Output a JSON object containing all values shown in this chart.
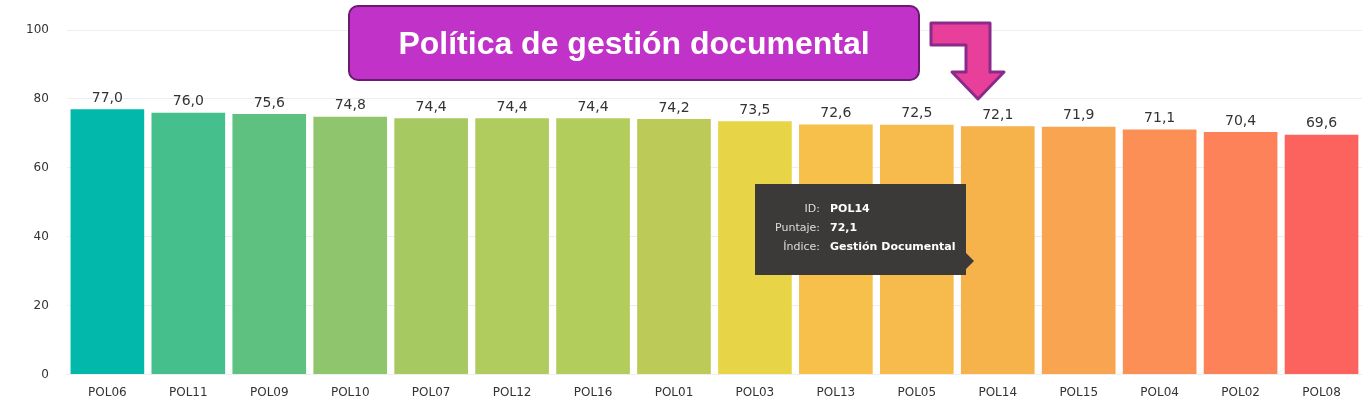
{
  "chart_data": {
    "type": "bar",
    "title": "Política de gestión documental",
    "categories": [
      "POL06",
      "POL11",
      "POL09",
      "POL10",
      "POL07",
      "POL12",
      "POL16",
      "POL01",
      "POL03",
      "POL13",
      "POL05",
      "POL14",
      "POL15",
      "POL04",
      "POL02",
      "POL08"
    ],
    "values": [
      77.0,
      76.0,
      75.6,
      74.8,
      74.4,
      74.4,
      74.4,
      74.2,
      73.5,
      72.6,
      72.5,
      72.1,
      71.9,
      71.1,
      70.4,
      69.6
    ],
    "value_labels": [
      "77,0",
      "76,0",
      "75,6",
      "74,8",
      "74,4",
      "74,4",
      "74,4",
      "74,2",
      "73,5",
      "72,6",
      "72,5",
      "72,1",
      "71,9",
      "71,1",
      "70,4",
      "69,6"
    ],
    "colors": [
      "#01b8aa",
      "#45c08c",
      "#5fc17f",
      "#8fc56c",
      "#a7c962",
      "#b0cc5e",
      "#b3cd5d",
      "#bccb57",
      "#e8d447",
      "#f6c04b",
      "#f6bb4c",
      "#f6b24b",
      "#f8a450",
      "#fb8f55",
      "#fd8259",
      "#fd635e"
    ],
    "ylim": [
      0,
      100
    ],
    "yticks": [
      0,
      20,
      40,
      60,
      80,
      100
    ],
    "grid": "y",
    "annotations": [
      "ID: POL14",
      "Puntaje: 72,1",
      "Índice: Gestión Documental"
    ]
  }
}
